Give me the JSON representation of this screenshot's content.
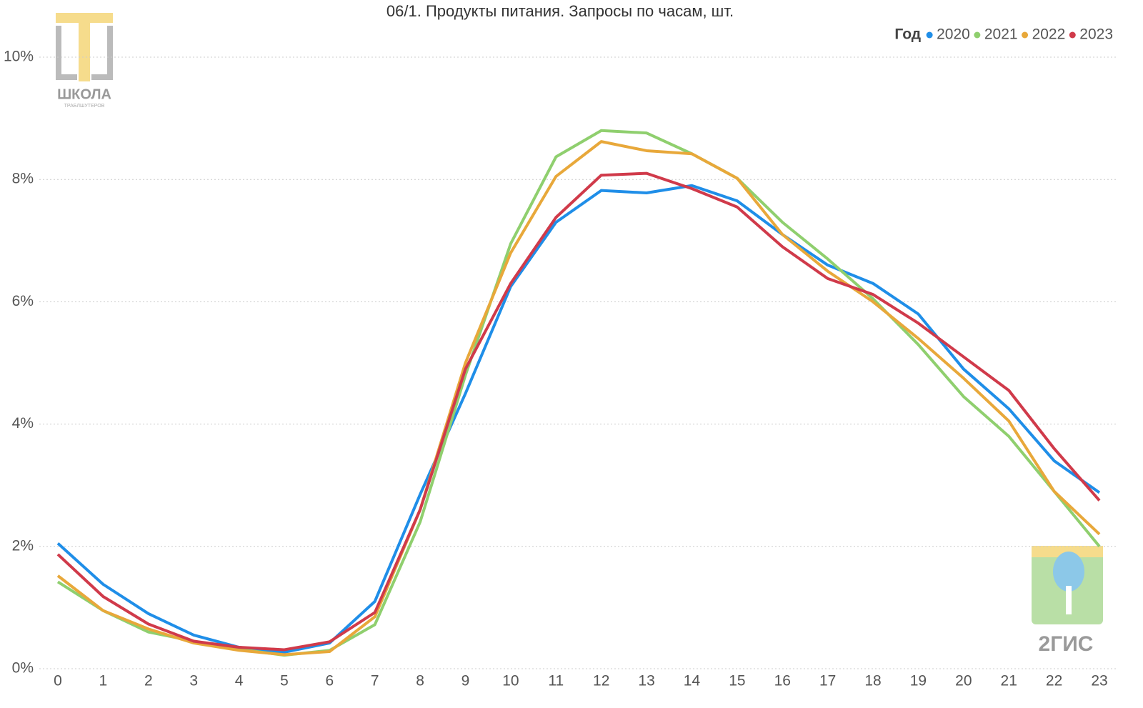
{
  "chart_data": {
    "type": "line",
    "title": "06/1. Продукты питания. Запросы по часам, шт.",
    "legend_title": "Год",
    "legend": "top-right",
    "grid": true,
    "x": [
      0,
      1,
      2,
      3,
      4,
      5,
      6,
      7,
      8,
      9,
      10,
      11,
      12,
      13,
      14,
      15,
      16,
      17,
      18,
      19,
      20,
      21,
      22,
      23
    ],
    "xlim": [
      0,
      23
    ],
    "xticks": [
      0,
      1,
      2,
      3,
      4,
      5,
      6,
      7,
      8,
      9,
      10,
      11,
      12,
      13,
      14,
      15,
      16,
      17,
      18,
      19,
      20,
      21,
      22,
      23
    ],
    "ylim": [
      0,
      10
    ],
    "yticks": [
      {
        "value": 0,
        "label": "0%"
      },
      {
        "value": 2,
        "label": "2%"
      },
      {
        "value": 4,
        "label": "4%"
      },
      {
        "value": 6,
        "label": "6%"
      },
      {
        "value": 8,
        "label": "8%"
      },
      {
        "value": 10,
        "label": "10%"
      }
    ],
    "series": [
      {
        "name": "2020",
        "color": "#1f8ee8",
        "values": [
          2.05,
          1.38,
          0.9,
          0.55,
          0.35,
          0.27,
          0.42,
          1.1,
          2.85,
          4.5,
          6.25,
          7.3,
          7.82,
          7.78,
          7.9,
          7.65,
          7.1,
          6.6,
          6.3,
          5.8,
          4.9,
          4.25,
          3.4,
          2.88
        ]
      },
      {
        "name": "2021",
        "color": "#8fcf6e",
        "values": [
          1.42,
          0.95,
          0.6,
          0.45,
          0.32,
          0.22,
          0.3,
          0.72,
          2.4,
          4.8,
          6.95,
          8.37,
          8.8,
          8.76,
          8.42,
          8.02,
          7.3,
          6.7,
          6.05,
          5.3,
          4.45,
          3.8,
          2.9,
          2.0
        ]
      },
      {
        "name": "2022",
        "color": "#e8a83a",
        "values": [
          1.52,
          0.95,
          0.65,
          0.42,
          0.3,
          0.23,
          0.28,
          0.85,
          2.6,
          5.0,
          6.8,
          8.05,
          8.62,
          8.47,
          8.42,
          8.02,
          7.1,
          6.5,
          6.0,
          5.4,
          4.75,
          4.05,
          2.9,
          2.2
        ]
      },
      {
        "name": "2023",
        "color": "#d03a4a",
        "values": [
          1.87,
          1.18,
          0.73,
          0.45,
          0.35,
          0.31,
          0.44,
          0.92,
          2.6,
          4.9,
          6.3,
          7.38,
          8.07,
          8.1,
          7.85,
          7.55,
          6.9,
          6.38,
          6.12,
          5.65,
          5.1,
          4.55,
          3.6,
          2.75
        ]
      }
    ]
  },
  "logos": {
    "school": "ШКОЛА",
    "school_sub": "ТРАБЛШУТЕРОВ",
    "brand": "2ГИС"
  }
}
